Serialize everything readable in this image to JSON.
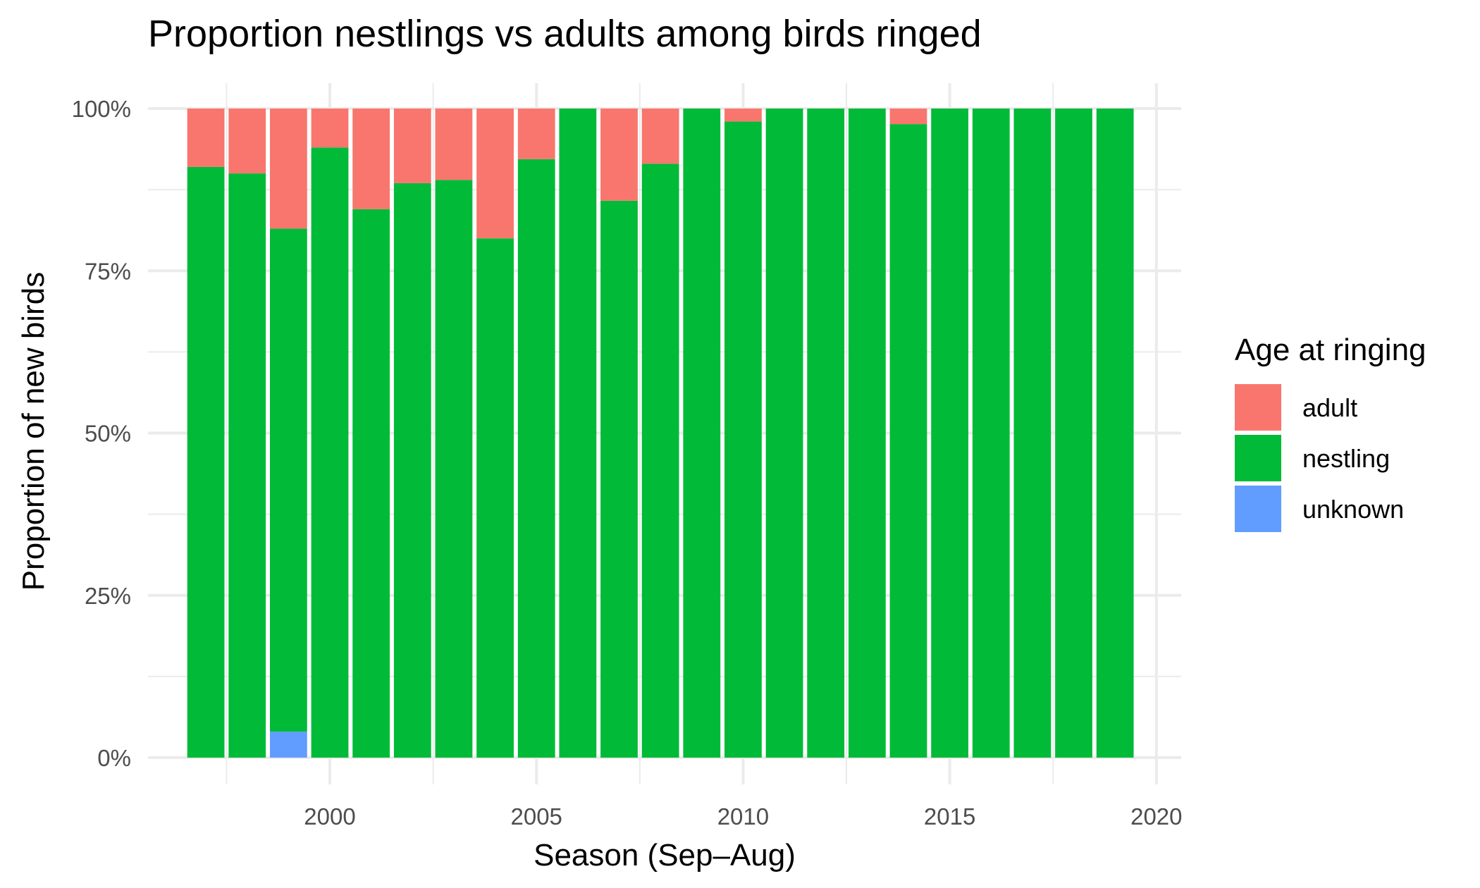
{
  "chart_data": {
    "type": "bar",
    "stacked": true,
    "title": "Proportion nestlings vs adults among birds ringed",
    "xlabel": "Season (Sep–Aug)",
    "ylabel": "Proportion of new birds",
    "x": [
      1997,
      1998,
      1999,
      2000,
      2001,
      2002,
      2003,
      2004,
      2005,
      2006,
      2007,
      2008,
      2009,
      2010,
      2011,
      2012,
      2013,
      2014,
      2015,
      2016,
      2017,
      2018,
      2019
    ],
    "series": [
      {
        "name": "unknown",
        "color": "#619CFF",
        "values": [
          0,
          0,
          0.04,
          0,
          0,
          0,
          0,
          0,
          0,
          0,
          0,
          0,
          0,
          0,
          0,
          0,
          0,
          0,
          0,
          0,
          0,
          0,
          0
        ]
      },
      {
        "name": "nestling",
        "color": "#00BA38",
        "values": [
          0.91,
          0.9,
          0.775,
          0.94,
          0.845,
          0.885,
          0.89,
          0.8,
          0.922,
          1.0,
          0.858,
          0.915,
          1.0,
          0.98,
          1.0,
          1.0,
          1.0,
          0.976,
          1.0,
          1.0,
          1.0,
          1.0,
          1.0
        ]
      },
      {
        "name": "adult",
        "color": "#F8766D",
        "values": [
          0.09,
          0.1,
          0.185,
          0.06,
          0.155,
          0.115,
          0.11,
          0.2,
          0.078,
          0,
          0.142,
          0.085,
          0,
          0.02,
          0,
          0,
          0,
          0.024,
          0,
          0,
          0,
          0,
          0
        ]
      }
    ],
    "xlim": [
      1995.6,
      2020.6
    ],
    "ylim": [
      0,
      1
    ],
    "x_ticks": [
      2000,
      2005,
      2010,
      2015,
      2020
    ],
    "x_tick_labels": [
      "2000",
      "2005",
      "2010",
      "2015",
      "2020"
    ],
    "y_ticks": [
      0,
      0.25,
      0.5,
      0.75,
      1.0
    ],
    "y_tick_labels": [
      "0%",
      "25%",
      "50%",
      "75%",
      "100%"
    ],
    "grid": true,
    "legend": {
      "title": "Age at ringing",
      "position": "right",
      "items": [
        {
          "label": "adult",
          "color": "#F8766D"
        },
        {
          "label": "nestling",
          "color": "#00BA38"
        },
        {
          "label": "unknown",
          "color": "#619CFF"
        }
      ]
    }
  }
}
